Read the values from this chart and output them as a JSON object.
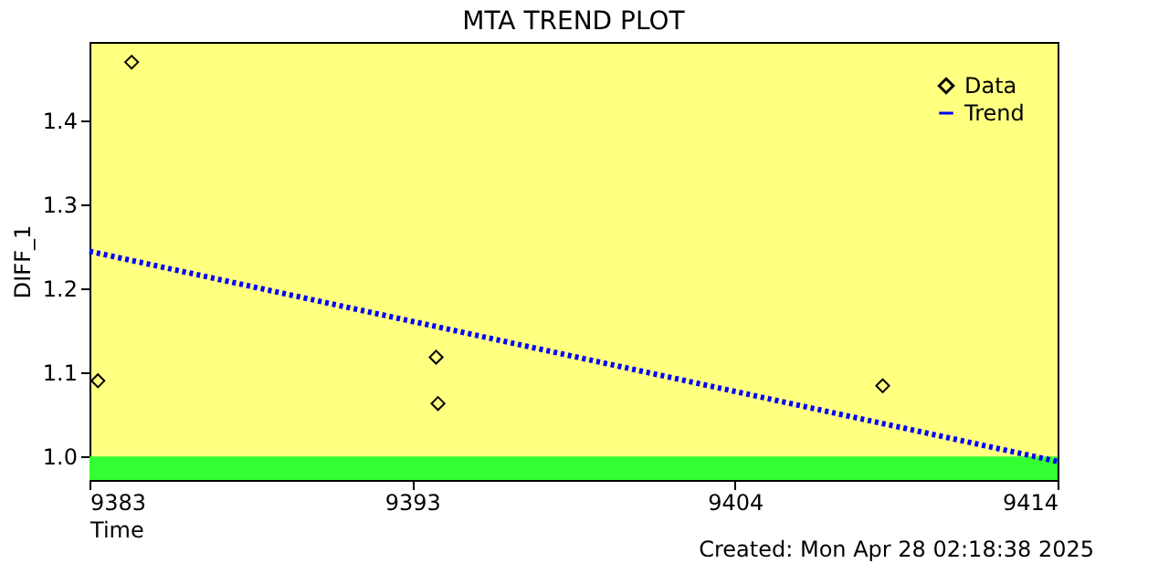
{
  "chart_data": {
    "type": "scatter",
    "title": "MTA TREND PLOT",
    "xlabel": "Time",
    "ylabel": "DIFF_1",
    "x": [
      9383.27,
      9384.35,
      9394.1,
      9394.16,
      9408.4
    ],
    "series": [
      {
        "name": "Data",
        "color": "#000000",
        "marker": "diamond",
        "values": [
          1.09,
          1.469,
          1.118,
          1.063,
          1.084
        ]
      },
      {
        "name": "Trend",
        "type": "line",
        "color": "#0000ff",
        "line_style": "dotted",
        "marker": "none",
        "x": [
          9383,
          9414
        ],
        "values": [
          1.244,
          0.994
        ]
      }
    ],
    "xlim": [
      9383,
      9414
    ],
    "xticks": [
      9383,
      {
        "value": 9393.33,
        "label": "9393"
      },
      {
        "value": 9403.67,
        "label": "9404"
      },
      9414
    ],
    "ylim": [
      0.972,
      1.493
    ],
    "yticks": [
      {
        "value": 1,
        "label": "1.0"
      },
      1.1,
      1.2,
      1.3,
      1.4
    ],
    "bands": [
      {
        "axis": "y",
        "from": 0.972,
        "to": 1.0,
        "color": "#33ff33"
      }
    ],
    "legend": "top right",
    "grid": false,
    "annotations": [
      "Created: Mon Apr 28 02:18:38 2025"
    ]
  }
}
